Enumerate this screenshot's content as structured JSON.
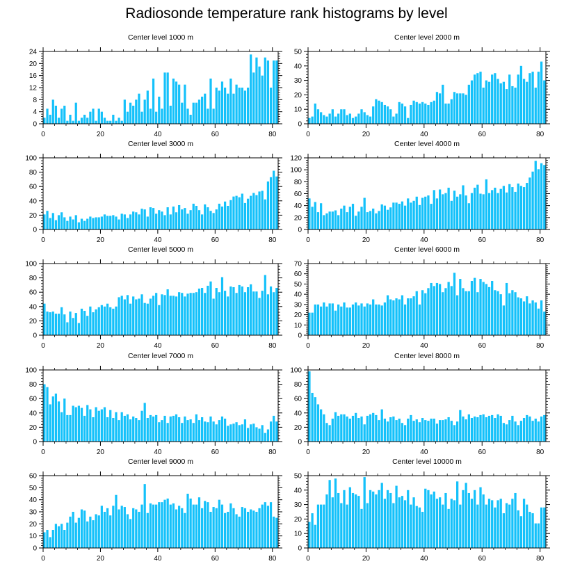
{
  "figure": {
    "title": "Radiosonde temperature rank histograms by level"
  },
  "colors": {
    "bar": "#14c1fa",
    "bar_edge": "#0ea8e0",
    "axis": "#000000",
    "background": "#ffffff"
  },
  "chart_data": [
    {
      "type": "bar",
      "title": "Center level 1000 m",
      "xlabel": "",
      "ylabel": "",
      "xlim": [
        0,
        82
      ],
      "ylim": [
        0,
        24
      ],
      "xticks": [
        0,
        20,
        40,
        60,
        80
      ],
      "yticks": [
        0,
        4,
        8,
        12,
        16,
        20,
        24
      ],
      "x_start": 0,
      "values": [
        2,
        5,
        3,
        8,
        6,
        2,
        5,
        6,
        1,
        3,
        1,
        7,
        1,
        2,
        3,
        2,
        4,
        5,
        1,
        5,
        4,
        2,
        1,
        1,
        3,
        1,
        2,
        1,
        8,
        4,
        7,
        6,
        8,
        10,
        4,
        8,
        11,
        5,
        15,
        4,
        9,
        5,
        17,
        17,
        6,
        15,
        14,
        13,
        7,
        13,
        5,
        3,
        7,
        7,
        8,
        9,
        10,
        5,
        15,
        5,
        12,
        11,
        14,
        12,
        10,
        15,
        10,
        13,
        12,
        12,
        11,
        12,
        23,
        17,
        22,
        19,
        16,
        22,
        21,
        12,
        21,
        21
      ]
    },
    {
      "type": "bar",
      "title": "Center level 2000 m",
      "xlabel": "",
      "ylabel": "",
      "xlim": [
        0,
        82
      ],
      "ylim": [
        0,
        50
      ],
      "xticks": [
        0,
        20,
        40,
        60,
        80
      ],
      "yticks": [
        0,
        10,
        20,
        30,
        40,
        50
      ],
      "x_start": 0,
      "values": [
        4,
        5,
        14,
        10,
        8,
        6,
        5,
        7,
        10,
        5,
        7,
        10,
        10,
        6,
        7,
        4,
        5,
        7,
        10,
        8,
        6,
        5,
        12,
        17,
        16,
        15,
        13,
        12,
        10,
        5,
        7,
        15,
        14,
        12,
        4,
        13,
        16,
        15,
        14,
        15,
        14,
        13,
        15,
        16,
        22,
        21,
        27,
        14,
        14,
        17,
        22,
        21,
        21,
        21,
        20,
        27,
        30,
        34,
        35,
        36,
        25,
        30,
        29,
        34,
        35,
        31,
        28,
        29,
        24,
        34,
        26,
        25,
        34,
        40,
        31,
        29,
        35,
        36,
        25,
        36,
        43,
        30
      ]
    },
    {
      "type": "bar",
      "title": "Center level 3000 m",
      "xlabel": "",
      "ylabel": "",
      "xlim": [
        0,
        82
      ],
      "ylim": [
        0,
        100
      ],
      "xticks": [
        0,
        20,
        40,
        60,
        80
      ],
      "yticks": [
        0,
        20,
        40,
        60,
        80,
        100
      ],
      "x_start": 0,
      "values": [
        21,
        26,
        16,
        23,
        13,
        20,
        24,
        17,
        12,
        18,
        14,
        20,
        10,
        15,
        12,
        15,
        18,
        16,
        17,
        17,
        18,
        21,
        19,
        19,
        20,
        18,
        14,
        22,
        21,
        16,
        21,
        25,
        24,
        21,
        29,
        28,
        18,
        31,
        30,
        22,
        27,
        25,
        20,
        31,
        21,
        32,
        24,
        34,
        28,
        30,
        22,
        27,
        36,
        33,
        27,
        21,
        35,
        31,
        26,
        23,
        28,
        36,
        32,
        39,
        33,
        41,
        46,
        47,
        45,
        50,
        37,
        43,
        47,
        51,
        48,
        53,
        54,
        42,
        67,
        73,
        82,
        74
      ]
    },
    {
      "type": "bar",
      "title": "Center level 4000 m",
      "xlabel": "",
      "ylabel": "",
      "xlim": [
        0,
        82
      ],
      "ylim": [
        0,
        120
      ],
      "xticks": [
        0,
        20,
        40,
        60,
        80
      ],
      "yticks": [
        0,
        20,
        40,
        60,
        80,
        100,
        120
      ],
      "x_start": 0,
      "values": [
        52,
        38,
        46,
        29,
        44,
        24,
        27,
        30,
        30,
        32,
        24,
        35,
        40,
        29,
        38,
        43,
        23,
        30,
        38,
        53,
        29,
        31,
        35,
        27,
        31,
        42,
        40,
        33,
        37,
        45,
        45,
        43,
        47,
        40,
        52,
        45,
        48,
        55,
        41,
        53,
        55,
        57,
        43,
        66,
        52,
        67,
        59,
        61,
        70,
        48,
        65,
        55,
        59,
        74,
        57,
        44,
        61,
        70,
        75,
        60,
        59,
        84,
        61,
        66,
        70,
        61,
        68,
        73,
        62,
        76,
        71,
        63,
        77,
        73,
        71,
        78,
        87,
        97,
        115,
        101,
        111,
        108
      ]
    },
    {
      "type": "bar",
      "title": "Center level 5000 m",
      "xlabel": "",
      "ylabel": "",
      "xlim": [
        0,
        82
      ],
      "ylim": [
        0,
        100
      ],
      "xticks": [
        0,
        20,
        40,
        60,
        80
      ],
      "yticks": [
        0,
        20,
        40,
        60,
        80,
        100
      ],
      "x_start": 0,
      "values": [
        44,
        33,
        32,
        33,
        30,
        30,
        39,
        29,
        18,
        33,
        24,
        31,
        17,
        37,
        34,
        27,
        40,
        32,
        36,
        39,
        42,
        40,
        44,
        39,
        37,
        40,
        53,
        55,
        50,
        56,
        44,
        54,
        50,
        51,
        57,
        45,
        44,
        51,
        55,
        59,
        42,
        57,
        56,
        64,
        55,
        55,
        54,
        60,
        59,
        54,
        58,
        59,
        59,
        60,
        65,
        66,
        59,
        69,
        75,
        51,
        66,
        60,
        81,
        62,
        54,
        68,
        67,
        59,
        70,
        68,
        60,
        67,
        71,
        61,
        61,
        52,
        62,
        84,
        57,
        68,
        60,
        66
      ]
    },
    {
      "type": "bar",
      "title": "Center level 6000 m",
      "xlabel": "",
      "ylabel": "",
      "xlim": [
        0,
        82
      ],
      "ylim": [
        0,
        70
      ],
      "xticks": [
        0,
        20,
        40,
        60,
        80
      ],
      "yticks": [
        0,
        10,
        20,
        30,
        40,
        50,
        60,
        70
      ],
      "x_start": 0,
      "values": [
        22,
        22,
        30,
        30,
        28,
        32,
        28,
        31,
        31,
        24,
        30,
        28,
        32,
        27,
        27,
        30,
        32,
        29,
        31,
        28,
        31,
        30,
        35,
        30,
        30,
        29,
        32,
        39,
        35,
        34,
        36,
        35,
        39,
        30,
        36,
        36,
        38,
        43,
        30,
        44,
        41,
        46,
        51,
        48,
        51,
        50,
        42,
        46,
        52,
        48,
        61,
        39,
        55,
        46,
        43,
        43,
        53,
        56,
        42,
        55,
        52,
        50,
        47,
        53,
        44,
        43,
        40,
        29,
        51,
        41,
        44,
        42,
        37,
        36,
        33,
        38,
        31,
        34,
        32,
        26,
        34,
        23
      ]
    },
    {
      "type": "bar",
      "title": "Center level 7000 m",
      "xlabel": "",
      "ylabel": "",
      "xlim": [
        0,
        82
      ],
      "ylim": [
        0,
        100
      ],
      "xticks": [
        0,
        20,
        40,
        60,
        80
      ],
      "yticks": [
        0,
        20,
        40,
        60,
        80,
        100
      ],
      "x_start": 0,
      "values": [
        80,
        76,
        52,
        63,
        67,
        56,
        41,
        60,
        37,
        37,
        50,
        48,
        50,
        47,
        36,
        51,
        45,
        34,
        48,
        43,
        45,
        48,
        34,
        44,
        33,
        41,
        30,
        41,
        36,
        38,
        31,
        35,
        33,
        30,
        43,
        54,
        33,
        37,
        35,
        37,
        27,
        30,
        36,
        26,
        35,
        36,
        38,
        34,
        26,
        35,
        30,
        31,
        26,
        38,
        30,
        34,
        28,
        27,
        35,
        28,
        24,
        30,
        35,
        32,
        22,
        24,
        25,
        27,
        23,
        24,
        31,
        19,
        24,
        25,
        20,
        18,
        23,
        12,
        17,
        28,
        36,
        28
      ]
    },
    {
      "type": "bar",
      "title": "Center level 8000 m",
      "xlabel": "",
      "ylabel": "",
      "xlim": [
        0,
        82
      ],
      "ylim": [
        0,
        100
      ],
      "xticks": [
        0,
        20,
        40,
        60,
        80
      ],
      "yticks": [
        0,
        20,
        40,
        60,
        80,
        100
      ],
      "x_start": 0,
      "values": [
        98,
        68,
        62,
        52,
        45,
        38,
        26,
        23,
        32,
        41,
        36,
        38,
        38,
        35,
        32,
        36,
        40,
        33,
        35,
        24,
        36,
        38,
        40,
        37,
        30,
        45,
        32,
        28,
        34,
        35,
        30,
        32,
        26,
        23,
        32,
        37,
        29,
        31,
        27,
        33,
        30,
        29,
        32,
        32,
        25,
        30,
        30,
        31,
        34,
        29,
        23,
        28,
        44,
        35,
        31,
        38,
        33,
        35,
        34,
        37,
        38,
        34,
        36,
        37,
        33,
        38,
        36,
        26,
        24,
        30,
        36,
        28,
        23,
        29,
        33,
        37,
        35,
        29,
        32,
        28,
        35,
        37
      ]
    },
    {
      "type": "bar",
      "title": "Center level 9000 m",
      "xlabel": "",
      "ylabel": "",
      "xlim": [
        0,
        82
      ],
      "ylim": [
        0,
        60
      ],
      "xticks": [
        0,
        20,
        40,
        60,
        80
      ],
      "yticks": [
        0,
        10,
        20,
        30,
        40,
        50,
        60
      ],
      "x_start": 0,
      "values": [
        13,
        15,
        9,
        15,
        20,
        18,
        20,
        15,
        21,
        26,
        30,
        21,
        25,
        32,
        31,
        22,
        26,
        23,
        28,
        27,
        35,
        30,
        33,
        27,
        35,
        44,
        32,
        35,
        34,
        28,
        24,
        33,
        32,
        30,
        36,
        53,
        29,
        37,
        36,
        36,
        38,
        38,
        40,
        41,
        36,
        37,
        32,
        35,
        33,
        29,
        45,
        41,
        36,
        36,
        42,
        33,
        39,
        38,
        30,
        34,
        33,
        40,
        36,
        29,
        30,
        37,
        33,
        28,
        26,
        34,
        33,
        30,
        32,
        31,
        30,
        33,
        36,
        38,
        35,
        38,
        26,
        25
      ]
    },
    {
      "type": "bar",
      "title": "Center level 10000 m",
      "xlabel": "",
      "ylabel": "",
      "xlim": [
        0,
        82
      ],
      "ylim": [
        0,
        50
      ],
      "xticks": [
        0,
        20,
        40,
        60,
        80
      ],
      "yticks": [
        0,
        10,
        20,
        30,
        40,
        50
      ],
      "x_start": 0,
      "values": [
        18,
        24,
        16,
        30,
        30,
        30,
        37,
        47,
        35,
        48,
        38,
        31,
        40,
        30,
        42,
        38,
        37,
        36,
        27,
        49,
        31,
        40,
        39,
        37,
        40,
        45,
        34,
        40,
        38,
        31,
        43,
        35,
        36,
        33,
        40,
        30,
        35,
        29,
        28,
        25,
        41,
        40,
        37,
        39,
        34,
        35,
        30,
        38,
        27,
        34,
        33,
        46,
        30,
        40,
        45,
        38,
        34,
        40,
        30,
        42,
        37,
        30,
        34,
        33,
        28,
        33,
        34,
        24,
        31,
        30,
        34,
        38,
        26,
        22,
        34,
        30,
        25,
        24,
        17,
        17,
        28,
        28
      ]
    }
  ]
}
